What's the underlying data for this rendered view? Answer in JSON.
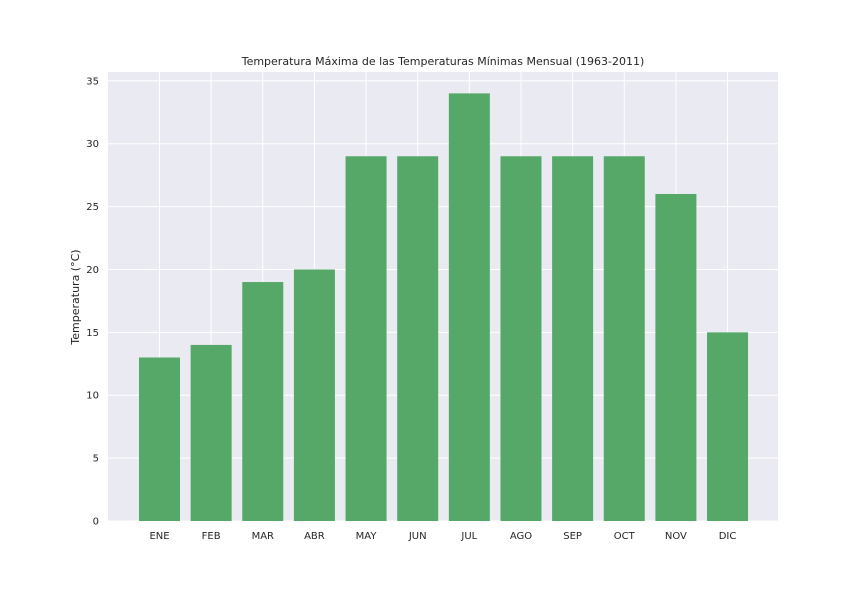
{
  "chart_data": {
    "type": "bar",
    "title": "Temperatura Máxima de las Temperaturas Mínimas Mensual (1963-2011)",
    "xlabel": "",
    "ylabel": "Temperatura (°C)",
    "categories": [
      "ENE",
      "FEB",
      "MAR",
      "ABR",
      "MAY",
      "JUN",
      "JUL",
      "AGO",
      "SEP",
      "OCT",
      "NOV",
      "DIC"
    ],
    "values": [
      13,
      14,
      19,
      20,
      29,
      29,
      34,
      29,
      29,
      29,
      26,
      15
    ],
    "ylim": [
      0,
      35.7
    ],
    "yticks": [
      0,
      5,
      10,
      15,
      20,
      25,
      30,
      35
    ],
    "grid": true,
    "colors": {
      "bar": "#55a868",
      "background": "#eaeaf2",
      "grid": "#ffffff"
    }
  }
}
